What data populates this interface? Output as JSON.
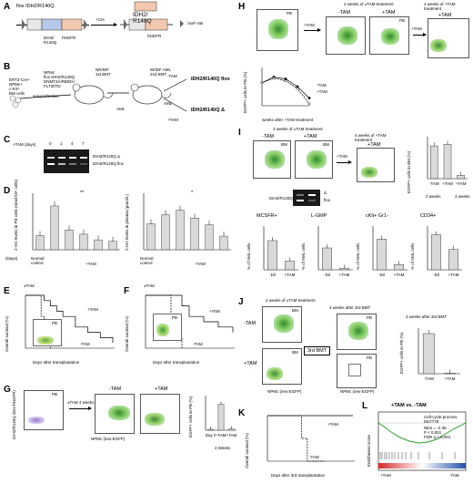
{
  "panels": {
    "A": {
      "label": "A",
      "title": "flox IDH2/R140Q",
      "gene_a": "IDH2/",
      "gene_a2": "R140Q",
      "hngfr": "hNGFR",
      "ires": "IRES",
      "cre": "+Cre",
      "gene_b": "IDH2/",
      "gene_b2": "R140Q",
      "hngfr_b": "hNGFR",
      "loxp": ": loxP site"
    },
    "B": {
      "label": "B",
      "cells": "ERT2-Cre+\nNPMc+\nc-Kit+\nBM cells",
      "serial": "serial infection",
      "vectors": "NPMc\nflox IDH2/R140Q\nDNMT3A/R882H\nFLT3/ITD",
      "first_bmt": "NR/IDF\n1st BMT",
      "second_bmt": "W/IDF AML\n2nd BMT",
      "aml1": "AML",
      "aml2": "AML",
      "minus_tam": "-TAM",
      "plus_tam": "+TAM",
      "flox": "IDH2/R140Q flox",
      "delta": "IDH2/R140Q Δ"
    },
    "C": {
      "label": "C",
      "header": "+TAM (days)",
      "days": [
        "0",
        "1",
        "4",
        "7"
      ],
      "band1": "IDH2/R140Q Δ",
      "band2": "IDH2/R140Q flox"
    },
    "D": {
      "label": "D",
      "ylabel_left": "2-HG levels in PB cells (nmol/10⁶ cells)",
      "ylabel_right": "2-HG levels in plasma (μmol/L)",
      "xlabel": "(Days)",
      "normal": "Normal control",
      "tam": "+TAM",
      "sig_left": "**",
      "sig_right": "*"
    },
    "E": {
      "label": "E",
      "tam": "±TAM",
      "ylabel": "Overall survival (%)",
      "xlabel": "Days after transplantation",
      "pb": "PB",
      "plus_tam": "+TAM",
      "minus_tam": "-TAM"
    },
    "F": {
      "label": "F",
      "tam": "±TAM",
      "ylabel": "Overall survival (%)",
      "xlabel": "Days after transplantation",
      "pb": "PB",
      "plus_tam": "+TAM",
      "minus_tam": "-TAM"
    },
    "G": {
      "label": "G",
      "pb": "PB",
      "tam": "±TAM 4 weeks",
      "minus_tam": "-TAM",
      "plus_tam": "+TAM",
      "ylabel": "EGFP+ cells in PB (%)",
      "xcats": [
        "Day 0",
        "-TAM",
        "+TAM"
      ],
      "xgroup": "4 Weeks"
    },
    "H": {
      "label": "H",
      "title_mid": "2 weeks of ±TAM treatment",
      "title_right": "4 weeks of +TAM treatment",
      "pb": "PB",
      "minus_tam": "-TAM",
      "plus_tam": "+TAM",
      "arrow1": "+TAM",
      "arrow2": "+TAM",
      "ylabel": "EGFP+ cells in PB (%)",
      "xlabel": "weeks after +TAM treatment",
      "legend_minus": "-TAM",
      "legend_plus": "+TAM"
    },
    "I": {
      "label": "I",
      "title_mid": "2 weeks of ±TAM treatment",
      "title_right": "4 weeks of +TAM treatment",
      "minus_tam": "-TAM",
      "plus_tam": "+TAM",
      "bm": "BM",
      "arrow": "+TAM",
      "gel_label": "IDH2/R140Q",
      "band_d": "Δ",
      "band_f": "flox",
      "bar_ylabel": "EGFP+ cells in BM (%)",
      "bar_cats": [
        "-TAM",
        "+TAM",
        "+TAM"
      ],
      "bar_groups": [
        "2 weeks",
        "4 weeks"
      ],
      "markers": [
        "MCSFR+",
        "L-GMP",
        "cKit+ Gr1-",
        "CD34+"
      ],
      "marker_ylabel": "% of AML cells",
      "marker_cats": [
        "-Dil",
        "+TAM"
      ]
    },
    "J": {
      "label": "J",
      "title_left": "2 weeks of ±TAM treatment",
      "title_right": "4 weeks after 3rd BMT",
      "minus_tam": "-TAM",
      "plus_tam": "+TAM",
      "bm": "BM",
      "pb": "PB",
      "bmt": "3rd BMT",
      "bar_title": "4 weeks after 3rd BMT",
      "bar_ylabel": "EGFP+ cells in PB (%)",
      "bar_cats": [
        "-TAM",
        "+TAM"
      ]
    },
    "K": {
      "label": "K",
      "ylabel": "Overall survival (%)",
      "xlabel": "Days after 3rd transplantation",
      "plus_tam": "+TAM",
      "minus_tam": "-TAM"
    },
    "L": {
      "label": "L",
      "title": "+TAM vs. -TAM",
      "gene_set": "Cell-cycle process\nM17778",
      "stats": "NES = -2.36\nP < 0.001\nFDR q < 0.001",
      "ylabel": "Enrichment score",
      "x_left": "+TAM",
      "x_right": "-TAM"
    }
  },
  "flow_axes": {
    "x": "NPMc (ires-EGFP)",
    "y": "IDH2/R140Q (ires-hNGFR)"
  },
  "chart_data": [
    {
      "type": "bar",
      "panel": "D-left",
      "categories": [
        "Normal control",
        "0",
        "1",
        "2",
        "4",
        "7"
      ],
      "values": [
        1.0,
        3.1,
        1.4,
        1.1,
        0.7,
        0.6
      ],
      "ylim": [
        0,
        4
      ]
    },
    {
      "type": "bar",
      "panel": "D-right",
      "categories": [
        "Normal control",
        "0",
        "1",
        "2",
        "4",
        "7"
      ],
      "values": [
        23,
        31,
        35,
        28,
        22,
        12
      ],
      "ylim": [
        0,
        50
      ]
    },
    {
      "type": "line",
      "panel": "E",
      "series": [
        {
          "name": "+TAM",
          "x": [
            0,
            20,
            30,
            40,
            50,
            60,
            80,
            100,
            120,
            140
          ],
          "y": [
            100,
            100,
            90,
            80,
            70,
            60,
            40,
            30,
            20,
            10
          ]
        },
        {
          "name": "-TAM",
          "x": [
            0,
            20,
            25,
            30,
            35,
            40
          ],
          "y": [
            100,
            100,
            60,
            30,
            10,
            0
          ]
        }
      ],
      "xlim": [
        0,
        140
      ],
      "ylim": [
        0,
        100
      ]
    },
    {
      "type": "line",
      "panel": "F",
      "series": [
        {
          "name": "+TAM",
          "x": [
            0,
            40,
            50,
            60,
            80,
            100,
            120
          ],
          "y": [
            100,
            100,
            80,
            60,
            50,
            40,
            30
          ]
        },
        {
          "name": "-TAM",
          "x": [
            0,
            30,
            35,
            40,
            50
          ],
          "y": [
            100,
            100,
            50,
            20,
            0
          ]
        }
      ],
      "xlim": [
        0,
        120
      ],
      "ylim": [
        0,
        100
      ]
    },
    {
      "type": "bar",
      "panel": "G",
      "categories": [
        "Day 0",
        "-TAM",
        "+TAM"
      ],
      "values": [
        2,
        60,
        3
      ],
      "ylim": [
        0,
        80
      ]
    },
    {
      "type": "line",
      "panel": "H",
      "series": [
        {
          "name": "-TAM",
          "x": [
            0,
            1,
            2,
            3,
            4
          ],
          "y": [
            60,
            75,
            70,
            50,
            20
          ]
        },
        {
          "name": "+TAM",
          "x": [
            0,
            1,
            2,
            3,
            4
          ],
          "y": [
            60,
            72,
            65,
            45,
            5
          ]
        }
      ],
      "ylim": [
        0,
        100
      ]
    },
    {
      "type": "bar",
      "panel": "I-right",
      "categories": [
        "-TAM",
        "+TAM",
        "+TAM"
      ],
      "values": [
        78,
        82,
        8
      ],
      "ylim": [
        0,
        100
      ]
    },
    {
      "type": "bar",
      "panel": "I-MCSFR+",
      "categories": [
        "-Dil",
        "+TAM"
      ],
      "values": [
        20,
        6
      ],
      "ylim": [
        0,
        30
      ]
    },
    {
      "type": "bar",
      "panel": "I-L-GMP",
      "categories": [
        "-Dil",
        "+TAM"
      ],
      "values": [
        3,
        0.2
      ],
      "ylim": [
        0,
        6
      ]
    },
    {
      "type": "bar",
      "panel": "I-cKit+ Gr1-",
      "categories": [
        "-Dil",
        "+TAM"
      ],
      "values": [
        35,
        6
      ],
      "ylim": [
        0,
        50
      ]
    },
    {
      "type": "bar",
      "panel": "I-CD34+",
      "categories": [
        "-Dil",
        "+TAM"
      ],
      "values": [
        4.8,
        2.8
      ],
      "ylim": [
        0,
        6
      ]
    },
    {
      "type": "bar",
      "panel": "J",
      "categories": [
        "-TAM",
        "+TAM"
      ],
      "values": [
        88,
        1
      ],
      "ylim": [
        0,
        100
      ]
    },
    {
      "type": "line",
      "panel": "K",
      "series": [
        {
          "name": "+TAM",
          "x": [
            0,
            150
          ],
          "y": [
            100,
            100
          ]
        },
        {
          "name": "-TAM",
          "x": [
            0,
            50,
            60,
            70,
            100
          ],
          "y": [
            100,
            100,
            50,
            0,
            0
          ]
        }
      ],
      "xlim": [
        0,
        150
      ],
      "ylim": [
        0,
        100
      ]
    }
  ]
}
